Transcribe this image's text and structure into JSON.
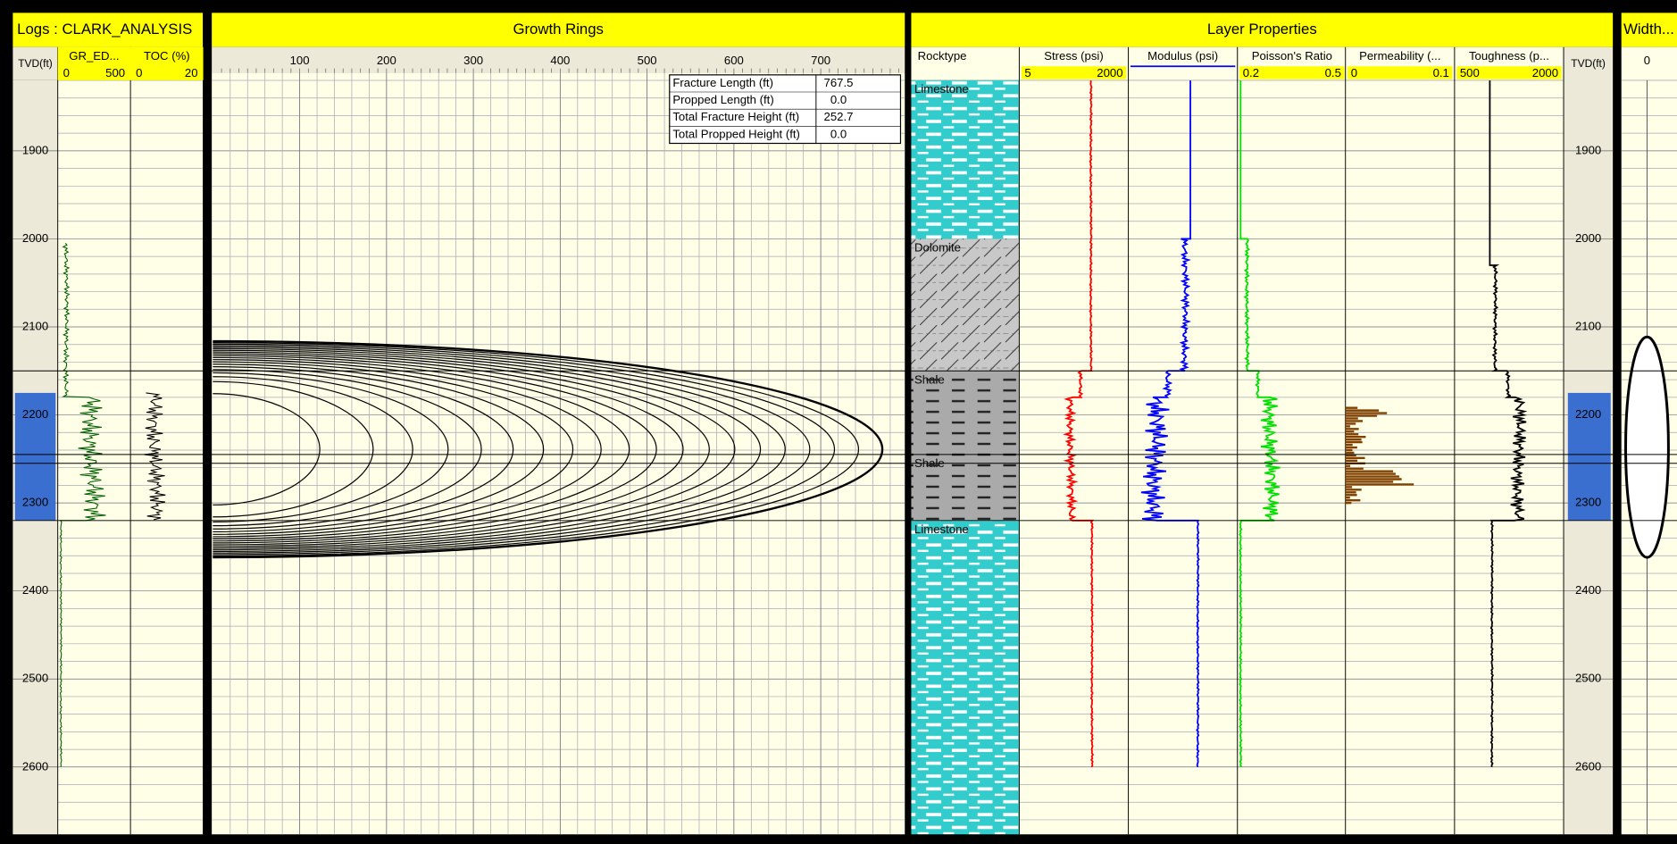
{
  "logs": {
    "title": "Logs : CLARK_ANALYSIS",
    "depth_label": "TVD(ft)",
    "tracks": [
      {
        "name": "GR_ED...",
        "min": "0",
        "max": "500"
      },
      {
        "name": "TOC (%)",
        "min": "0",
        "max": "20"
      }
    ]
  },
  "growth_rings": {
    "title": "Growth Rings",
    "xticks": [
      100,
      200,
      300,
      400,
      500,
      600,
      700
    ],
    "summary": [
      {
        "label": "Fracture Length (ft)",
        "value": "767.5"
      },
      {
        "label": "Propped Length (ft)",
        "value": "0.0"
      },
      {
        "label": "Total Fracture Height (ft)",
        "value": "252.7"
      },
      {
        "label": "Total Propped Height (ft)",
        "value": "0.0"
      }
    ]
  },
  "layer_properties": {
    "title": "Layer Properties",
    "rocktype_label": "Rocktype",
    "depth_label": "TVD(ft)",
    "tracks": [
      {
        "name": "Stress (psi)",
        "min": "5",
        "max": "2000",
        "color": "#ff0000"
      },
      {
        "name": "Modulus (psi)",
        "color": "#0000ff"
      },
      {
        "name": "Poisson's Ratio",
        "min": "0.2",
        "max": "0.5",
        "color": "#00e000"
      },
      {
        "name": "Permeability (...",
        "min": "0",
        "max": "0.1",
        "color": "#804000"
      },
      {
        "name": "Toughness (p...",
        "min": "500",
        "max": "2000",
        "color": "#000000"
      }
    ],
    "layers": [
      {
        "name": "Limestone"
      },
      {
        "name": "Dolomite"
      },
      {
        "name": "Shale"
      },
      {
        "name": "Shale"
      },
      {
        "name": "Limestone"
      }
    ]
  },
  "width": {
    "title": "Width...",
    "tick": "0"
  },
  "depth_ticks": [
    1900,
    2000,
    2100,
    2200,
    2300,
    2400,
    2500,
    2600
  ]
}
